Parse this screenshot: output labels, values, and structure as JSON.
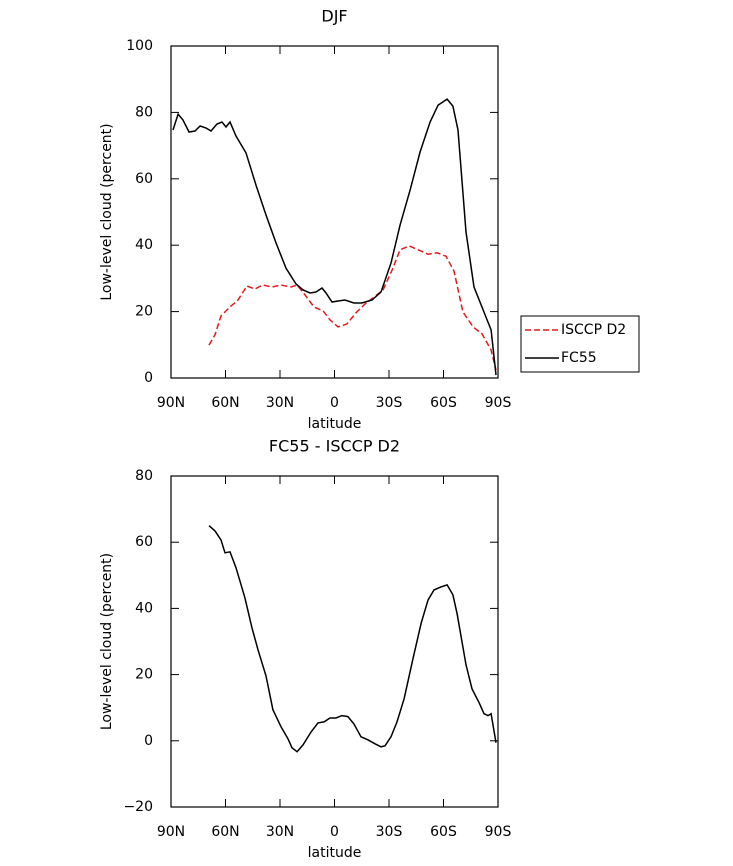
{
  "chart_data": [
    {
      "type": "line",
      "title": "DJF",
      "x_label": "latitude",
      "y_label": "Low-level cloud (percent)",
      "xlim": [
        90,
        -90
      ],
      "xticks": [
        {
          "value": 90,
          "label": "90N"
        },
        {
          "value": 60,
          "label": "60N"
        },
        {
          "value": 30,
          "label": "30N"
        },
        0,
        {
          "value": -30,
          "label": "30S"
        },
        {
          "value": -60,
          "label": "60S"
        },
        {
          "value": -90,
          "label": "90S"
        }
      ],
      "ylim": [
        0,
        100
      ],
      "yticks": [
        0,
        20,
        40,
        60,
        80,
        100
      ],
      "legend": "outside right",
      "series": [
        {
          "name": "ISCCP D2",
          "color": "#e41a1c",
          "dashed": true,
          "x": [
            69.1,
            65.8,
            62.5,
            58.1,
            53.1,
            48.2,
            43.8,
            39.4,
            34.4,
            29.4,
            23.9,
            20.6,
            16.2,
            11.3,
            6.3,
            2.5,
            -1.9,
            -6.9,
            -11.8,
            -16.8,
            -21.8,
            -26.7,
            -31.7,
            -36.1,
            -41.0,
            -46.0,
            -51.5,
            -56.4,
            -61.4,
            -65.8,
            -70.7,
            -76.3,
            -81.2,
            -86.2,
            -88.9
          ],
          "values": [
            9.9,
            13.0,
            18.7,
            21.1,
            23.5,
            27.7,
            26.8,
            28.0,
            27.4,
            28.0,
            27.4,
            28.0,
            25.0,
            21.4,
            20.2,
            17.5,
            15.4,
            16.3,
            19.6,
            22.3,
            24.4,
            26.5,
            32.5,
            38.6,
            39.8,
            38.6,
            37.3,
            37.7,
            36.7,
            32.2,
            19.9,
            15.4,
            13.3,
            8.4,
            2.4
          ]
        },
        {
          "name": "FC55",
          "color": "#000000",
          "dashed": false,
          "x": [
            88.9,
            86.1,
            83.4,
            80.1,
            76.8,
            74.0,
            70.7,
            68.0,
            64.7,
            61.9,
            59.7,
            57.5,
            54.2,
            48.7,
            43.2,
            37.7,
            32.2,
            26.7,
            21.2,
            17.3,
            13.5,
            10.2,
            6.9,
            4.7,
            1.4,
            -1.9,
            -5.8,
            -10.7,
            -15.1,
            -20.7,
            -25.6,
            -31.1,
            -36.1,
            -41.6,
            -47.1,
            -52.6,
            -57.0,
            -62.0,
            -65.2,
            -68.0,
            -72.4,
            -76.8,
            -81.8,
            -86.2,
            -88.9
          ],
          "values": [
            74.7,
            79.5,
            77.7,
            74.1,
            74.4,
            75.9,
            75.3,
            74.4,
            76.5,
            77.1,
            75.6,
            77.1,
            72.9,
            67.8,
            58.1,
            49.1,
            40.7,
            33.1,
            28.3,
            26.5,
            25.6,
            25.9,
            27.1,
            25.6,
            22.9,
            23.2,
            23.5,
            22.6,
            22.6,
            23.5,
            25.9,
            34.6,
            46.1,
            56.6,
            68.1,
            77.1,
            82.2,
            84.0,
            81.9,
            74.7,
            44.0,
            27.4,
            20.5,
            14.5,
            0.9
          ]
        }
      ]
    },
    {
      "type": "line",
      "title": "FC55 - ISCCP D2",
      "x_label": "latitude",
      "y_label": "Low-level cloud (percent)",
      "xlim": [
        90,
        -90
      ],
      "xticks": [
        {
          "value": 90,
          "label": "90N"
        },
        {
          "value": 60,
          "label": "60N"
        },
        {
          "value": 30,
          "label": "30N"
        },
        0,
        {
          "value": -30,
          "label": "30S"
        },
        {
          "value": -60,
          "label": "60S"
        },
        {
          "value": -90,
          "label": "90S"
        }
      ],
      "ylim": [
        -20,
        80
      ],
      "yticks": [
        {
          "value": -20,
          "label": "−20"
        },
        0,
        20,
        40,
        60,
        80
      ],
      "series": [
        {
          "color": "#000000",
          "dashed": false,
          "x": [
            69.1,
            65.8,
            62.5,
            60.3,
            57.5,
            54.2,
            49.3,
            45.4,
            42.1,
            37.7,
            33.9,
            29.4,
            25.6,
            23.4,
            20.6,
            17.3,
            12.9,
            9.1,
            5.8,
            2.5,
            -0.8,
            -4.1,
            -7.4,
            -10.7,
            -14.6,
            -18.4,
            -22.3,
            -25.6,
            -27.8,
            -31.1,
            -34.4,
            -38.3,
            -43.3,
            -47.7,
            -51.5,
            -54.8,
            -58.6,
            -62.0,
            -65.2,
            -67.5,
            -72.4,
            -75.7,
            -79.6,
            -82.3,
            -84.5,
            -86.2,
            -88.9
          ],
          "values": [
            65.0,
            63.4,
            60.7,
            56.8,
            57.1,
            52.3,
            43.2,
            34.1,
            27.5,
            19.6,
            9.4,
            4.2,
            0.6,
            -2.1,
            -3.3,
            -1.2,
            2.7,
            5.4,
            5.7,
            6.9,
            6.9,
            7.6,
            7.3,
            5.1,
            1.2,
            0.3,
            -0.9,
            -1.8,
            -1.5,
            1.2,
            5.7,
            12.7,
            25.1,
            35.6,
            42.6,
            45.6,
            46.5,
            47.1,
            44.1,
            38.4,
            23.0,
            15.7,
            11.5,
            8.2,
            7.6,
            8.2,
            -0.6
          ]
        }
      ]
    }
  ]
}
